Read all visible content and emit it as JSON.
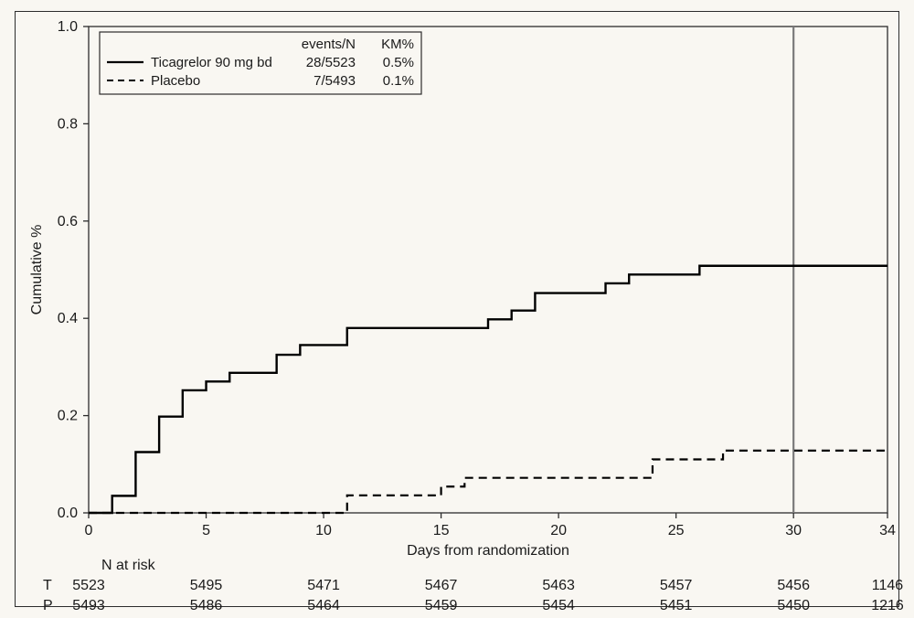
{
  "chart": {
    "type": "kaplan-meier",
    "background_color": "#f9f7f2",
    "panel_border_color": "#2c2c2c",
    "plot_border_color": "#2c2c2c",
    "tick_color": "#2c2c2c",
    "line_color": "#000000",
    "line_width_solid": 2.4,
    "line_width_dashed": 2.2,
    "dash_pattern": "9,6",
    "reference_line_x": 30,
    "reference_line_color": "#7a7a7a",
    "reference_line_width": 2.2,
    "xlabel": "Days from randomization",
    "ylabel": "Cumulative %",
    "label_fontsize": 16,
    "tick_fontsize": 16,
    "xlim": [
      0,
      34
    ],
    "ylim": [
      0,
      1.0
    ],
    "xticks": [
      0,
      5,
      10,
      15,
      20,
      25,
      30,
      34
    ],
    "yticks": [
      0.0,
      0.2,
      0.4,
      0.6,
      0.8,
      1.0
    ],
    "ytick_labels": [
      "0.0",
      "0.2",
      "0.4",
      "0.6",
      "0.8",
      "1.0"
    ],
    "legend": {
      "border_color": "#2c2c2c",
      "background": "#f9f7f2",
      "headers": [
        "events/N",
        "KM%"
      ],
      "rows": [
        {
          "label": "Ticagrelor 90 mg bd",
          "style": "solid",
          "events_n": "28/5523",
          "km": "0.5%"
        },
        {
          "label": "Placebo",
          "style": "dashed",
          "events_n": "7/5493",
          "km": "0.1%"
        }
      ]
    },
    "series": [
      {
        "name": "Ticagrelor 90 mg bd",
        "style": "solid",
        "steps": [
          [
            0,
            0.0
          ],
          [
            1,
            0.0
          ],
          [
            1,
            0.035
          ],
          [
            2,
            0.035
          ],
          [
            2,
            0.125
          ],
          [
            3,
            0.125
          ],
          [
            3,
            0.198
          ],
          [
            4,
            0.198
          ],
          [
            4,
            0.252
          ],
          [
            5,
            0.252
          ],
          [
            5,
            0.27
          ],
          [
            6,
            0.27
          ],
          [
            6,
            0.288
          ],
          [
            8,
            0.288
          ],
          [
            8,
            0.325
          ],
          [
            9,
            0.325
          ],
          [
            9,
            0.345
          ],
          [
            11,
            0.345
          ],
          [
            11,
            0.38
          ],
          [
            12,
            0.38
          ],
          [
            12,
            0.38
          ],
          [
            17,
            0.38
          ],
          [
            17,
            0.398
          ],
          [
            18,
            0.398
          ],
          [
            18,
            0.416
          ],
          [
            19,
            0.416
          ],
          [
            19,
            0.452
          ],
          [
            20,
            0.452
          ],
          [
            20,
            0.452
          ],
          [
            22,
            0.452
          ],
          [
            22,
            0.472
          ],
          [
            23,
            0.472
          ],
          [
            23,
            0.49
          ],
          [
            26,
            0.49
          ],
          [
            26,
            0.508
          ],
          [
            34,
            0.508
          ]
        ]
      },
      {
        "name": "Placebo",
        "style": "dashed",
        "steps": [
          [
            0,
            0.0
          ],
          [
            11,
            0.0
          ],
          [
            11,
            0.036
          ],
          [
            15,
            0.036
          ],
          [
            15,
            0.054
          ],
          [
            16,
            0.054
          ],
          [
            16,
            0.072
          ],
          [
            24,
            0.072
          ],
          [
            24,
            0.11
          ],
          [
            27,
            0.11
          ],
          [
            27,
            0.128
          ],
          [
            34,
            0.128
          ]
        ]
      }
    ],
    "at_risk": {
      "title": "N at risk",
      "ticks": [
        0,
        5,
        10,
        15,
        20,
        25,
        30,
        34
      ],
      "rows": [
        {
          "label": "T",
          "values": [
            "5523",
            "5495",
            "5471",
            "5467",
            "5463",
            "5457",
            "5456",
            "1146"
          ]
        },
        {
          "label": "P",
          "values": [
            "5493",
            "5486",
            "5464",
            "5459",
            "5454",
            "5451",
            "5450",
            "1216"
          ]
        }
      ]
    }
  }
}
